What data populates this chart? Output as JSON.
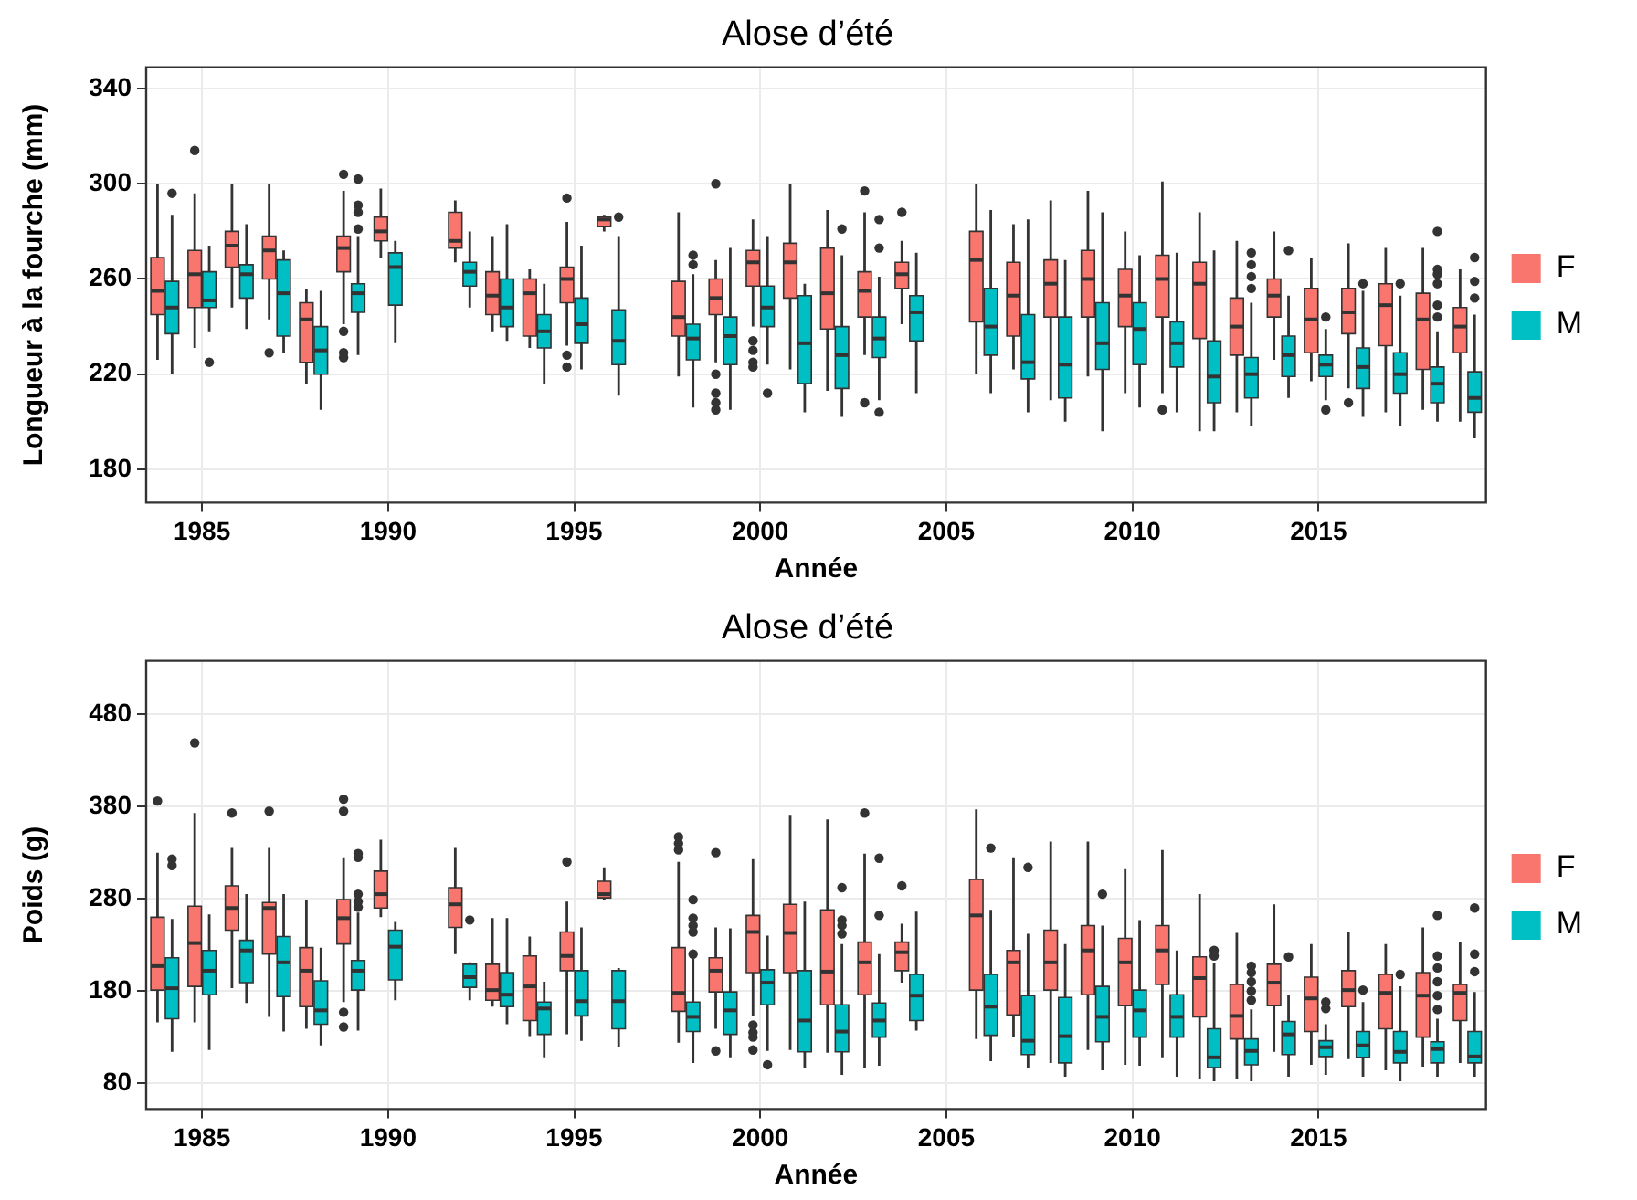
{
  "chart_data": [
    {
      "type": "box",
      "title": "Alose d’été",
      "xlabel": "Année",
      "ylabel": "Longueur à la fourche (mm)",
      "categories": [
        null,
        "1985",
        null,
        null,
        null,
        null,
        "1990",
        null,
        null,
        null,
        null,
        "1995",
        null,
        null,
        null,
        null,
        "2000",
        null,
        null,
        null,
        null,
        "2005",
        null,
        null,
        null,
        null,
        "2010",
        null,
        null,
        null,
        null,
        "2015",
        null,
        null,
        null,
        null
      ],
      "ylim": [
        166,
        349
      ],
      "yticks": [
        180,
        220,
        260,
        300,
        340
      ],
      "grid": true,
      "legend": "right",
      "series": [
        {
          "name": "F",
          "color": "#f8766d",
          "boxes": [
            {
              "low": 226,
              "q1": 245,
              "median": 255,
              "q3": 269,
              "high": 300
            },
            {
              "low": 231,
              "q1": 248,
              "median": 262,
              "q3": 272,
              "high": 296,
              "outliers": [
                314
              ]
            },
            {
              "low": 248,
              "q1": 265,
              "median": 274,
              "q3": 280,
              "high": 300
            },
            {
              "low": 243,
              "q1": 260,
              "median": 272,
              "q3": 278,
              "high": 300,
              "outliers": [
                229
              ]
            },
            {
              "low": 216,
              "q1": 225,
              "median": 243,
              "q3": 250,
              "high": 256
            },
            {
              "low": 241,
              "q1": 263,
              "median": 273,
              "q3": 278,
              "high": 297,
              "outliers": [
                304,
                238,
                229,
                227
              ]
            },
            {
              "low": 269,
              "q1": 276,
              "median": 280,
              "q3": 286,
              "high": 298
            },
            null,
            {
              "low": 267,
              "q1": 273,
              "median": 276,
              "q3": 288,
              "high": 293
            },
            {
              "low": 238,
              "q1": 245,
              "median": 253,
              "q3": 263,
              "high": 278
            },
            {
              "low": 231,
              "q1": 236,
              "median": 254,
              "q3": 260,
              "high": 264
            },
            {
              "low": 232,
              "q1": 250,
              "median": 260,
              "q3": 265,
              "high": 284,
              "outliers": [
                294,
                228,
                223
              ]
            },
            {
              "low": 280,
              "q1": 282,
              "median": 285,
              "q3": 286,
              "high": 287
            },
            null,
            {
              "low": 219,
              "q1": 236,
              "median": 244,
              "q3": 259,
              "high": 288
            },
            {
              "low": 225,
              "q1": 245,
              "median": 252,
              "q3": 260,
              "high": 268,
              "outliers": [
                300,
                220,
                212,
                208,
                205
              ]
            },
            {
              "low": 240,
              "q1": 257,
              "median": 267,
              "q3": 272,
              "high": 285,
              "outliers": [
                234,
                230,
                225,
                223
              ]
            },
            {
              "low": 222,
              "q1": 252,
              "median": 267,
              "q3": 275,
              "high": 300
            },
            {
              "low": 213,
              "q1": 239,
              "median": 254,
              "q3": 273,
              "high": 289
            },
            {
              "low": 228,
              "q1": 244,
              "median": 255,
              "q3": 263,
              "high": 288,
              "outliers": [
                297,
                208
              ]
            },
            {
              "low": 241,
              "q1": 256,
              "median": 262,
              "q3": 267,
              "high": 276,
              "outliers": [
                288
              ]
            },
            null,
            {
              "low": 220,
              "q1": 242,
              "median": 268,
              "q3": 280,
              "high": 300
            },
            {
              "low": 222,
              "q1": 236,
              "median": 253,
              "q3": 267,
              "high": 283
            },
            {
              "low": 209,
              "q1": 244,
              "median": 258,
              "q3": 268,
              "high": 293
            },
            {
              "low": 219,
              "q1": 244,
              "median": 260,
              "q3": 272,
              "high": 297
            },
            {
              "low": 212,
              "q1": 240,
              "median": 253,
              "q3": 264,
              "high": 280
            },
            {
              "low": 212,
              "q1": 244,
              "median": 260,
              "q3": 270,
              "high": 301,
              "outliers": [
                205
              ]
            },
            {
              "low": 196,
              "q1": 235,
              "median": 258,
              "q3": 267,
              "high": 288
            },
            {
              "low": 204,
              "q1": 228,
              "median": 240,
              "q3": 252,
              "high": 276
            },
            {
              "low": 226,
              "q1": 244,
              "median": 253,
              "q3": 260,
              "high": 280
            },
            {
              "low": 217,
              "q1": 229,
              "median": 243,
              "q3": 256,
              "high": 269
            },
            {
              "low": 214,
              "q1": 237,
              "median": 246,
              "q3": 256,
              "high": 275,
              "outliers": [
                208
              ]
            },
            {
              "low": 204,
              "q1": 232,
              "median": 249,
              "q3": 258,
              "high": 273
            },
            {
              "low": 205,
              "q1": 222,
              "median": 243,
              "q3": 254,
              "high": 273
            },
            {
              "low": 200,
              "q1": 229,
              "median": 240,
              "q3": 248,
              "high": 264
            }
          ]
        },
        {
          "name": "M",
          "color": "#00bfc4",
          "boxes": [
            {
              "low": 220,
              "q1": 237,
              "median": 248,
              "q3": 259,
              "high": 287,
              "outliers": [
                296
              ]
            },
            {
              "low": 238,
              "q1": 248,
              "median": 251,
              "q3": 263,
              "high": 274,
              "outliers": [
                225
              ]
            },
            {
              "low": 239,
              "q1": 252,
              "median": 262,
              "q3": 266,
              "high": 283
            },
            {
              "low": 229,
              "q1": 236,
              "median": 254,
              "q3": 268,
              "high": 272
            },
            {
              "low": 205,
              "q1": 220,
              "median": 230,
              "q3": 240,
              "high": 255
            },
            {
              "low": 228,
              "q1": 246,
              "median": 254,
              "q3": 258,
              "high": 278,
              "outliers": [
                302,
                291,
                288,
                281
              ]
            },
            {
              "low": 233,
              "q1": 249,
              "median": 265,
              "q3": 271,
              "high": 276
            },
            null,
            {
              "low": 248,
              "q1": 257,
              "median": 263,
              "q3": 267,
              "high": 280
            },
            {
              "low": 234,
              "q1": 240,
              "median": 248,
              "q3": 260,
              "high": 283
            },
            {
              "low": 216,
              "q1": 231,
              "median": 238,
              "q3": 245,
              "high": 258
            },
            {
              "low": 222,
              "q1": 233,
              "median": 241,
              "q3": 252,
              "high": 274
            },
            {
              "low": 211,
              "q1": 224,
              "median": 234,
              "q3": 247,
              "high": 278,
              "outliers": [
                286
              ]
            },
            null,
            {
              "low": 206,
              "q1": 226,
              "median": 235,
              "q3": 241,
              "high": 262,
              "outliers": [
                270,
                266
              ]
            },
            {
              "low": 205,
              "q1": 224,
              "median": 236,
              "q3": 244,
              "high": 273
            },
            {
              "low": 224,
              "q1": 240,
              "median": 248,
              "q3": 257,
              "high": 278,
              "outliers": [
                212
              ]
            },
            {
              "low": 204,
              "q1": 216,
              "median": 233,
              "q3": 253,
              "high": 258
            },
            {
              "low": 202,
              "q1": 214,
              "median": 228,
              "q3": 240,
              "high": 270,
              "outliers": [
                281
              ]
            },
            {
              "low": 209,
              "q1": 227,
              "median": 235,
              "q3": 244,
              "high": 261,
              "outliers": [
                285,
                273,
                204
              ]
            },
            {
              "low": 212,
              "q1": 234,
              "median": 246,
              "q3": 253,
              "high": 271
            },
            null,
            {
              "low": 212,
              "q1": 228,
              "median": 240,
              "q3": 256,
              "high": 289
            },
            {
              "low": 204,
              "q1": 218,
              "median": 225,
              "q3": 245,
              "high": 285
            },
            {
              "low": 200,
              "q1": 210,
              "median": 224,
              "q3": 244,
              "high": 268
            },
            {
              "low": 196,
              "q1": 222,
              "median": 233,
              "q3": 250,
              "high": 288
            },
            {
              "low": 206,
              "q1": 224,
              "median": 239,
              "q3": 250,
              "high": 270
            },
            {
              "low": 204,
              "q1": 223,
              "median": 233,
              "q3": 242,
              "high": 271
            },
            {
              "low": 196,
              "q1": 208,
              "median": 219,
              "q3": 234,
              "high": 272
            },
            {
              "low": 198,
              "q1": 210,
              "median": 220,
              "q3": 227,
              "high": 250,
              "outliers": [
                271,
                266,
                261,
                256
              ]
            },
            {
              "low": 210,
              "q1": 219,
              "median": 228,
              "q3": 236,
              "high": 253,
              "outliers": [
                272
              ]
            },
            {
              "low": 209,
              "q1": 219,
              "median": 224,
              "q3": 228,
              "high": 239,
              "outliers": [
                244,
                205
              ]
            },
            {
              "low": 202,
              "q1": 214,
              "median": 223,
              "q3": 231,
              "high": 255,
              "outliers": [
                258
              ]
            },
            {
              "low": 198,
              "q1": 212,
              "median": 220,
              "q3": 229,
              "high": 253,
              "outliers": [
                258
              ]
            },
            {
              "low": 200,
              "q1": 208,
              "median": 216,
              "q3": 223,
              "high": 238,
              "outliers": [
                280,
                264,
                262,
                258,
                249,
                244
              ]
            },
            {
              "low": 193,
              "q1": 204,
              "median": 210,
              "q3": 221,
              "high": 245,
              "outliers": [
                269,
                259,
                252
              ]
            }
          ]
        }
      ]
    },
    {
      "type": "box",
      "title": "Alose d’été",
      "xlabel": "Année",
      "ylabel": "Poids (g)",
      "categories": [
        null,
        "1985",
        null,
        null,
        null,
        null,
        "1990",
        null,
        null,
        null,
        null,
        "1995",
        null,
        null,
        null,
        null,
        "2000",
        null,
        null,
        null,
        null,
        "2005",
        null,
        null,
        null,
        null,
        "2010",
        null,
        null,
        null,
        null,
        "2015",
        null,
        null,
        null,
        null
      ],
      "ylim": [
        52,
        538
      ],
      "yticks": [
        80,
        180,
        280,
        380,
        480
      ],
      "grid": true,
      "legend": "right",
      "series": [
        {
          "name": "F",
          "color": "#f8766d",
          "boxes": [
            {
              "low": 146,
              "q1": 181,
              "median": 207,
              "q3": 260,
              "high": 330,
              "outliers": [
                386
              ]
            },
            {
              "low": 146,
              "q1": 185,
              "median": 232,
              "q3": 272,
              "high": 373,
              "outliers": [
                449
              ]
            },
            {
              "low": 183,
              "q1": 246,
              "median": 270,
              "q3": 294,
              "high": 335,
              "outliers": [
                373
              ]
            },
            {
              "low": 152,
              "q1": 220,
              "median": 270,
              "q3": 276,
              "high": 335,
              "outliers": [
                375
              ]
            },
            {
              "low": 139,
              "q1": 163,
              "median": 202,
              "q3": 227,
              "high": 279
            },
            {
              "low": 168,
              "q1": 231,
              "median": 259,
              "q3": 279,
              "high": 325,
              "outliers": [
                388,
                375,
                157,
                141
              ]
            },
            {
              "low": 260,
              "q1": 270,
              "median": 285,
              "q3": 310,
              "high": 344
            },
            null,
            {
              "low": 220,
              "q1": 249,
              "median": 274,
              "q3": 292,
              "high": 335
            },
            {
              "low": 163,
              "q1": 170,
              "median": 181,
              "q3": 209,
              "high": 259
            },
            {
              "low": 131,
              "q1": 148,
              "median": 185,
              "q3": 218,
              "high": 239
            },
            {
              "low": 133,
              "q1": 202,
              "median": 218,
              "q3": 244,
              "high": 277,
              "outliers": [
                320
              ]
            },
            {
              "low": 279,
              "q1": 281,
              "median": 285,
              "q3": 299,
              "high": 314
            },
            null,
            {
              "low": 124,
              "q1": 158,
              "median": 178,
              "q3": 227,
              "high": 320,
              "outliers": [
                347,
                340,
                333
              ]
            },
            {
              "low": 139,
              "q1": 179,
              "median": 202,
              "q3": 216,
              "high": 249,
              "outliers": [
                330,
                115
              ]
            },
            {
              "low": 153,
              "q1": 200,
              "median": 244,
              "q3": 262,
              "high": 323,
              "outliers": [
                143,
                135,
                130,
                116
              ]
            },
            {
              "low": 116,
              "q1": 200,
              "median": 243,
              "q3": 274,
              "high": 371
            },
            {
              "low": 113,
              "q1": 165,
              "median": 201,
              "q3": 268,
              "high": 366
            },
            {
              "low": 97,
              "q1": 176,
              "median": 211,
              "q3": 233,
              "high": 329,
              "outliers": [
                373
              ]
            },
            {
              "low": 189,
              "q1": 202,
              "median": 222,
              "q3": 233,
              "high": 253,
              "outliers": [
                294
              ]
            },
            null,
            {
              "low": 128,
              "q1": 181,
              "median": 262,
              "q3": 301,
              "high": 377
            },
            {
              "low": 130,
              "q1": 154,
              "median": 211,
              "q3": 224,
              "high": 325
            },
            {
              "low": 102,
              "q1": 181,
              "median": 211,
              "q3": 246,
              "high": 342
            },
            {
              "low": 116,
              "q1": 176,
              "median": 224,
              "q3": 251,
              "high": 342
            },
            {
              "low": 100,
              "q1": 164,
              "median": 211,
              "q3": 237,
              "high": 312
            },
            {
              "low": 108,
              "q1": 187,
              "median": 224,
              "q3": 251,
              "high": 333
            },
            {
              "low": 85,
              "q1": 152,
              "median": 194,
              "q3": 217,
              "high": 285
            },
            {
              "low": 85,
              "q1": 128,
              "median": 153,
              "q3": 187,
              "high": 243
            },
            {
              "low": 114,
              "q1": 164,
              "median": 189,
              "q3": 209,
              "high": 274
            },
            {
              "low": 100,
              "q1": 136,
              "median": 172,
              "q3": 195,
              "high": 231
            },
            {
              "low": 106,
              "q1": 163,
              "median": 181,
              "q3": 202,
              "high": 244
            },
            {
              "low": 94,
              "q1": 139,
              "median": 178,
              "q3": 198,
              "high": 231
            },
            {
              "low": 98,
              "q1": 130,
              "median": 175,
              "q3": 200,
              "high": 249
            },
            {
              "low": 102,
              "q1": 148,
              "median": 178,
              "q3": 187,
              "high": 233
            }
          ]
        },
        {
          "name": "M",
          "color": "#00bfc4",
          "boxes": [
            {
              "low": 114,
              "q1": 150,
              "median": 183,
              "q3": 216,
              "high": 258,
              "outliers": [
                323,
                316
              ]
            },
            {
              "low": 116,
              "q1": 176,
              "median": 202,
              "q3": 224,
              "high": 263
            },
            {
              "low": 167,
              "q1": 189,
              "median": 224,
              "q3": 235,
              "high": 285
            },
            {
              "low": 136,
              "q1": 174,
              "median": 211,
              "q3": 239,
              "high": 285
            },
            {
              "low": 121,
              "q1": 144,
              "median": 159,
              "q3": 191,
              "high": 227
            },
            {
              "low": 137,
              "q1": 181,
              "median": 202,
              "q3": 213,
              "high": 265,
              "outliers": [
                329,
                325,
                285,
                277,
                271
              ]
            },
            {
              "low": 170,
              "q1": 192,
              "median": 228,
              "q3": 246,
              "high": 255
            },
            null,
            {
              "low": 170,
              "q1": 184,
              "median": 195,
              "q3": 209,
              "high": 211,
              "outliers": [
                257
              ]
            },
            {
              "low": 144,
              "q1": 163,
              "median": 176,
              "q3": 200,
              "high": 259
            },
            {
              "low": 108,
              "q1": 133,
              "median": 161,
              "q3": 168,
              "high": 190
            },
            {
              "low": 126,
              "q1": 153,
              "median": 169,
              "q3": 202,
              "high": 249
            },
            {
              "low": 119,
              "q1": 139,
              "median": 169,
              "q3": 202,
              "high": 205
            },
            null,
            {
              "low": 102,
              "q1": 136,
              "median": 152,
              "q3": 168,
              "high": 215,
              "outliers": [
                279,
                259,
                251,
                244,
                220
              ]
            },
            {
              "low": 108,
              "q1": 133,
              "median": 159,
              "q3": 179,
              "high": 248
            },
            {
              "low": 115,
              "q1": 165,
              "median": 189,
              "q3": 203,
              "high": 240,
              "outliers": [
                100
              ]
            },
            {
              "low": 97,
              "q1": 114,
              "median": 148,
              "q3": 202,
              "high": 277
            },
            {
              "low": 89,
              "q1": 114,
              "median": 136,
              "q3": 165,
              "high": 231,
              "outliers": [
                292,
                257,
                251,
                242
              ]
            },
            {
              "low": 99,
              "q1": 130,
              "median": 148,
              "q3": 167,
              "high": 220,
              "outliers": [
                324,
                262
              ]
            },
            {
              "low": 137,
              "q1": 148,
              "median": 175,
              "q3": 198,
              "high": 266
            },
            null,
            {
              "low": 104,
              "q1": 132,
              "median": 163,
              "q3": 198,
              "high": 268,
              "outliers": [
                335
              ]
            },
            {
              "low": 97,
              "q1": 111,
              "median": 126,
              "q3": 175,
              "high": 242,
              "outliers": [
                314
              ]
            },
            {
              "low": 87,
              "q1": 102,
              "median": 131,
              "q3": 173,
              "high": 231
            },
            {
              "low": 94,
              "q1": 125,
              "median": 152,
              "q3": 185,
              "high": 251,
              "outliers": [
                285
              ]
            },
            {
              "low": 99,
              "q1": 130,
              "median": 159,
              "q3": 181,
              "high": 257
            },
            {
              "low": 87,
              "q1": 130,
              "median": 152,
              "q3": 176,
              "high": 224
            },
            {
              "low": 82,
              "q1": 97,
              "median": 108,
              "q3": 139,
              "high": 210,
              "outliers": [
                224,
                218
              ]
            },
            {
              "low": 82,
              "q1": 100,
              "median": 115,
              "q3": 128,
              "high": 160,
              "outliers": [
                207,
                200,
                190,
                180,
                170
              ]
            },
            {
              "low": 87,
              "q1": 111,
              "median": 133,
              "q3": 147,
              "high": 176,
              "outliers": [
                217
              ]
            },
            {
              "low": 89,
              "q1": 109,
              "median": 119,
              "q3": 126,
              "high": 144,
              "outliers": [
                168,
                161
              ]
            },
            {
              "low": 87,
              "q1": 108,
              "median": 121,
              "q3": 136,
              "high": 168,
              "outliers": [
                181
              ]
            },
            {
              "low": 82,
              "q1": 102,
              "median": 114,
              "q3": 136,
              "high": 185,
              "outliers": [
                198
              ]
            },
            {
              "low": 87,
              "q1": 102,
              "median": 117,
              "q3": 125,
              "high": 150,
              "outliers": [
                262,
                218,
                205,
                190,
                175,
                160
              ]
            },
            {
              "low": 87,
              "q1": 102,
              "median": 109,
              "q3": 136,
              "high": 179,
              "outliers": [
                270,
                220,
                201
              ]
            }
          ]
        }
      ]
    }
  ]
}
